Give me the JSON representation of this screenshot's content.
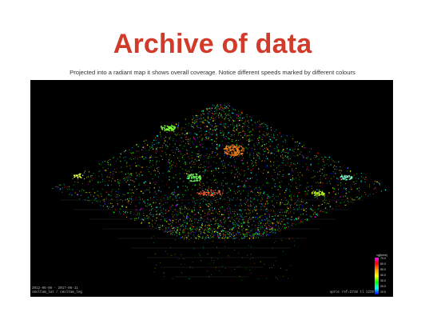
{
  "slide": {
    "title": "Archive of data",
    "subtitle": "Projected into a radiant map it shows overall coverage. Notice different speeds marked by different colours"
  },
  "map": {
    "date_range": "2012-06-08 - 2017-06-11",
    "station": "cmoltam_lat / cmoltam_lng",
    "software": "uproc ref=2718 tl 1229",
    "legend": {
      "title": "vg[km/s]",
      "ticks": [
        "70.0",
        "60.0",
        "50.0",
        "40.0",
        "30.0",
        "20.0",
        "10.0"
      ],
      "colors": [
        "#ff00ff",
        "#ff0000",
        "#ff9900",
        "#ffff00",
        "#00ff00",
        "#00ffff",
        "#0000ff"
      ]
    }
  }
}
